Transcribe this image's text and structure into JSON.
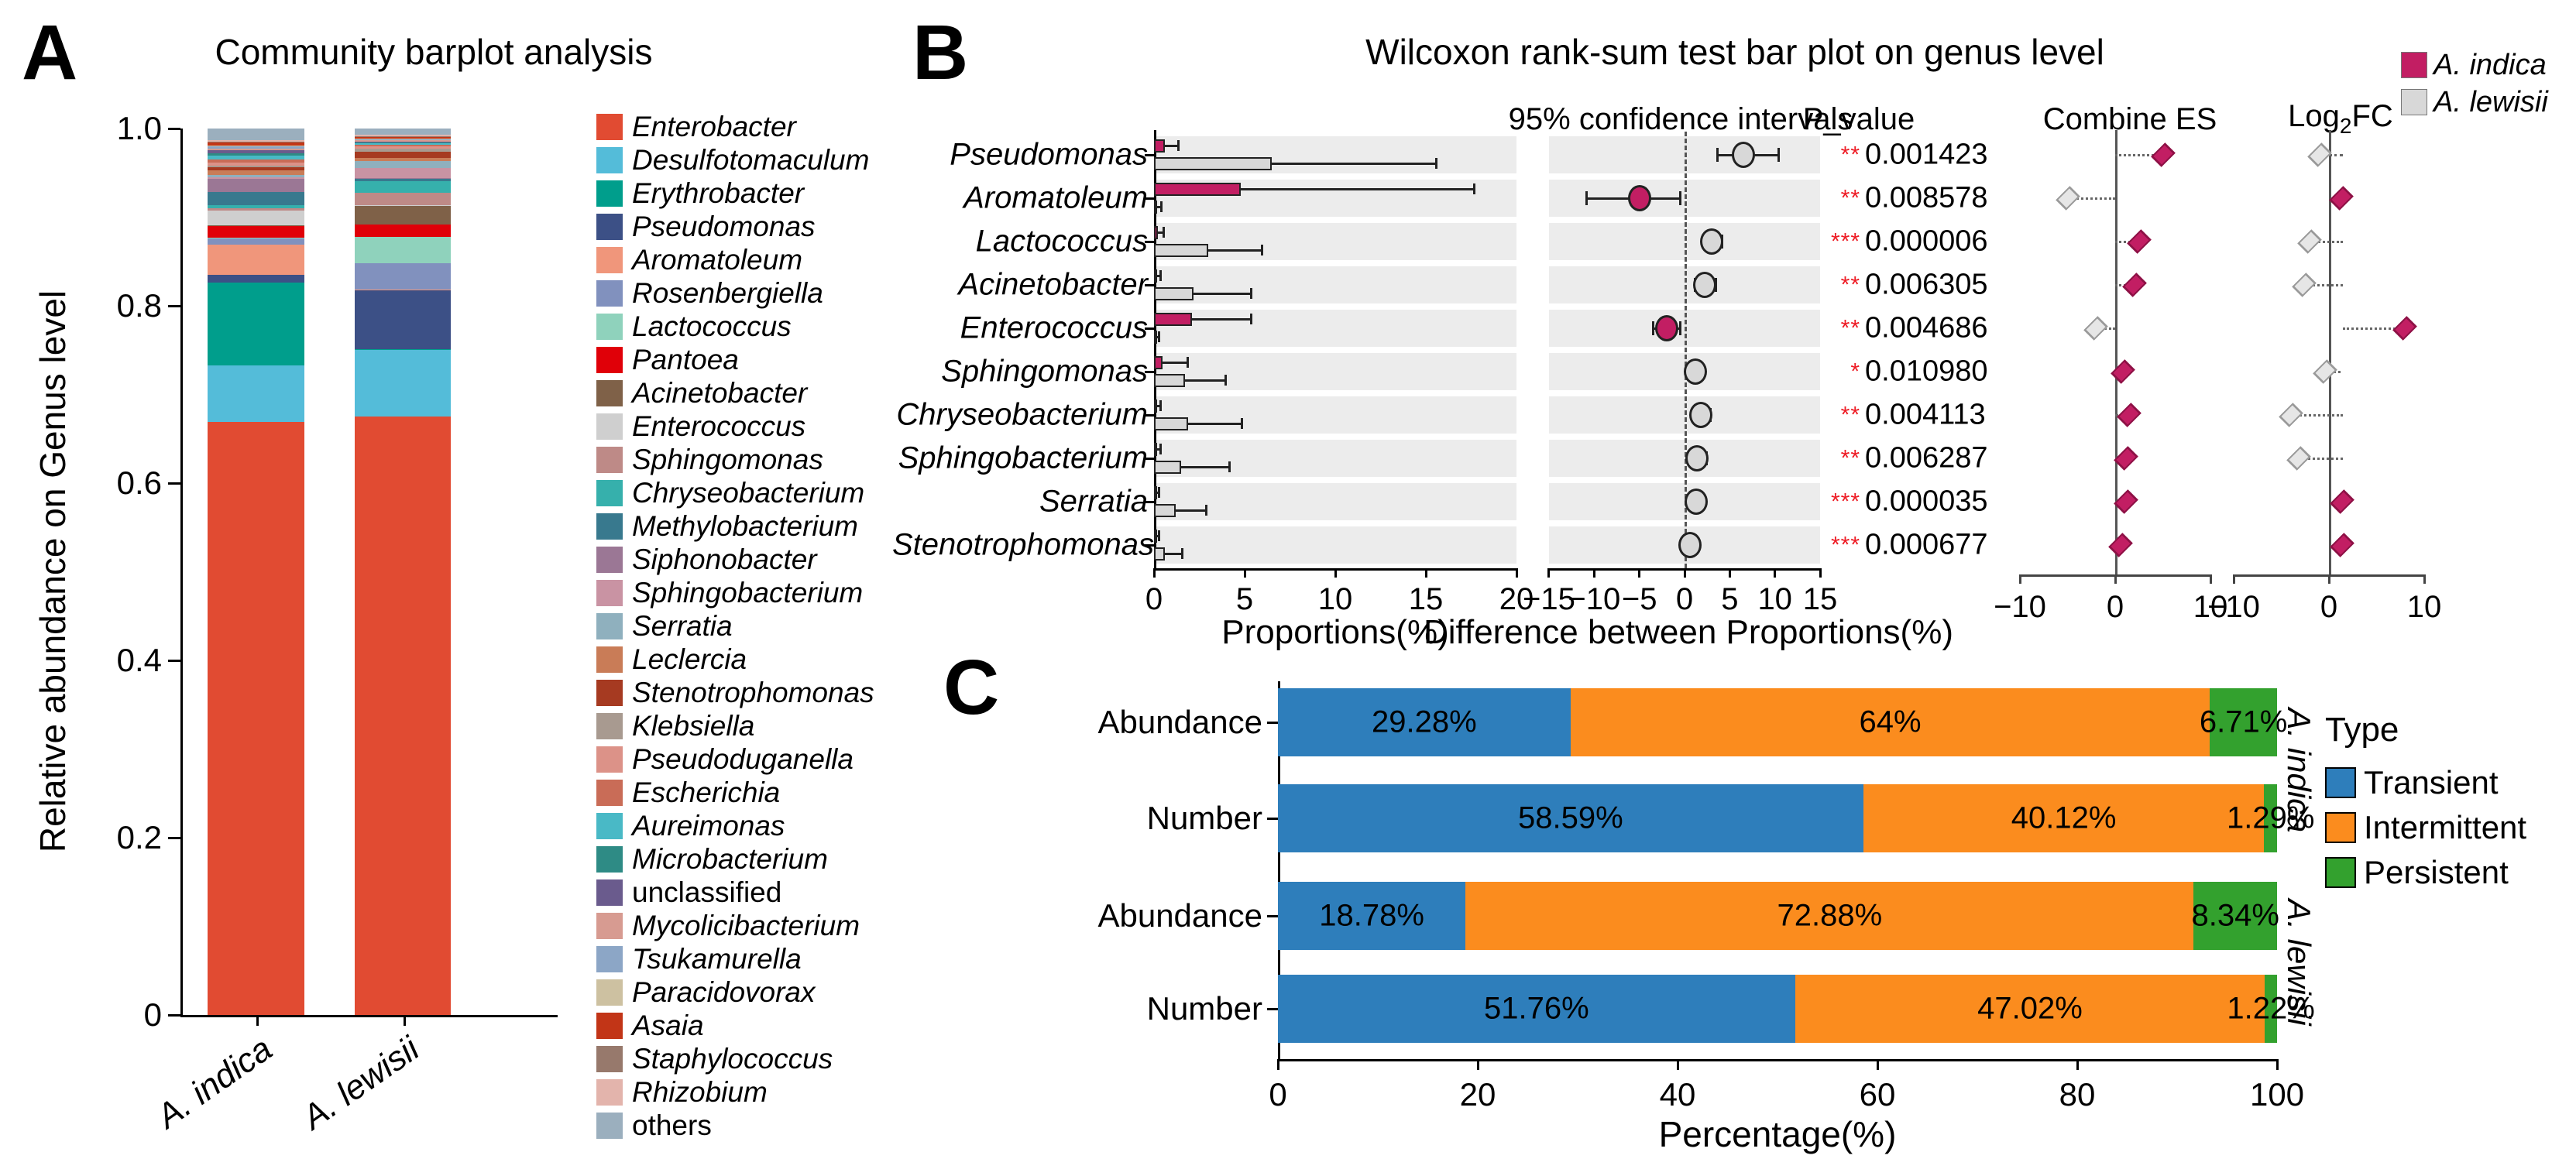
{
  "panels": {
    "a_label": "A",
    "b_label": "B",
    "c_label": "C"
  },
  "colors": {
    "indica": "#C21E63",
    "lewisii": "#D8D8D8",
    "stripe": "#ECECEC",
    "star": "#EE1C25"
  },
  "chart_data": [
    {
      "id": "A",
      "type": "bar",
      "stacked": true,
      "title": "Community barplot analysis",
      "ylabel": "Relative abundance on Genus level",
      "ylim": [
        0,
        1.0
      ],
      "yticks": [
        "1.0",
        "0.8",
        "0.6",
        "0.4",
        "0.2",
        "0"
      ],
      "categories": [
        "A. indica",
        "A. lewisii"
      ],
      "series": [
        {
          "name": "Enterobacter",
          "color": "#E14B32",
          "values": [
            0.672,
            0.678
          ]
        },
        {
          "name": "Desulfotomaculum",
          "color": "#54BCD9",
          "values": [
            0.064,
            0.075
          ]
        },
        {
          "name": "Erythrobacter",
          "color": "#009E8C",
          "values": [
            0.094,
            0.001
          ]
        },
        {
          "name": "Pseudomonas",
          "color": "#3C5086",
          "values": [
            0.009,
            0.067
          ]
        },
        {
          "name": "Aromatoleum",
          "color": "#F0967B",
          "values": [
            0.034,
            0.001
          ]
        },
        {
          "name": "Rosenbergiella",
          "color": "#8191BE",
          "values": [
            0.007,
            0.029
          ]
        },
        {
          "name": "Lactococcus",
          "color": "#8FD2BC",
          "values": [
            0.001,
            0.03
          ]
        },
        {
          "name": "Pantoea",
          "color": "#E00008",
          "values": [
            0.013,
            0.014
          ]
        },
        {
          "name": "Acinetobacter",
          "color": "#7F6148",
          "values": [
            0.001,
            0.021
          ]
        },
        {
          "name": "Enterococcus",
          "color": "#CFCFCF",
          "values": [
            0.017,
            0.001
          ]
        },
        {
          "name": "Sphingomonas",
          "color": "#BE8A87",
          "values": [
            0.003,
            0.014
          ]
        },
        {
          "name": "Chryseobacterium",
          "color": "#36B0AC",
          "values": [
            0.003,
            0.013
          ]
        },
        {
          "name": "Methylobacterium",
          "color": "#38798E",
          "values": [
            0.015,
            0.003
          ]
        },
        {
          "name": "Siphonobacter",
          "color": "#9B7795",
          "values": [
            0.015,
            0.001
          ]
        },
        {
          "name": "Sphingobacterium",
          "color": "#C993A3",
          "values": [
            0.002,
            0.011
          ]
        },
        {
          "name": "Serratia",
          "color": "#8FB0BE",
          "values": [
            0.002,
            0.008
          ]
        },
        {
          "name": "Leclercia",
          "color": "#C97C57",
          "values": [
            0.006,
            0.004
          ]
        },
        {
          "name": "Stenotrophomonas",
          "color": "#A63A21",
          "values": [
            0.003,
            0.007
          ]
        },
        {
          "name": "Klebsiella",
          "color": "#A89A90",
          "values": [
            0.002,
            0.003
          ]
        },
        {
          "name": "Pseudoduganella",
          "color": "#DC9288",
          "values": [
            0.003,
            0.003
          ]
        },
        {
          "name": "Escherichia",
          "color": "#C96C57",
          "values": [
            0.004,
            0.002
          ]
        },
        {
          "name": "Aureimonas",
          "color": "#49B9C6",
          "values": [
            0.004,
            0.001
          ]
        },
        {
          "name": "Microbacterium",
          "color": "#2E8B85",
          "values": [
            0.003,
            0.001
          ]
        },
        {
          "name": "unclassified",
          "color": "#6A5B8D",
          "values": [
            0.003,
            0.001
          ],
          "italic": false
        },
        {
          "name": "Mycolicibacterium",
          "color": "#D79B91",
          "values": [
            0.002,
            0.002
          ]
        },
        {
          "name": "Tsukamurella",
          "color": "#8CA6C6",
          "values": [
            0.003,
            0.001
          ]
        },
        {
          "name": "Paracidovorax",
          "color": "#CDC1A1",
          "values": [
            0.001,
            0.001
          ]
        },
        {
          "name": "Asaia",
          "color": "#C23517",
          "values": [
            0.003,
            0.001
          ]
        },
        {
          "name": "Staphylococcus",
          "color": "#97796C",
          "values": [
            0.001,
            0.001
          ]
        },
        {
          "name": "Rhizobium",
          "color": "#E3B4AC",
          "values": [
            0.002,
            0.002
          ]
        },
        {
          "name": "others",
          "color": "#9BAFBE",
          "values": [
            0.013,
            0.007
          ],
          "italic": false
        }
      ]
    },
    {
      "id": "B",
      "type": "bar-forest",
      "title": "Wilcoxon rank-sum test bar plot on genus level",
      "subtitle": "95% confidence intervals",
      "pvalue_header": "P_value",
      "es_header": "Combine ES",
      "fc_header": {
        "pre": "Log",
        "sub": "2",
        "post": "FC"
      },
      "xlabel_proportions": "Proportions(%)",
      "xlabel_difference": "Difference between Proportions(%)",
      "xlim_proportions": [
        0,
        20
      ],
      "xticks_proportions": [
        0,
        5,
        10,
        15,
        20
      ],
      "xlim_difference": [
        -15,
        15
      ],
      "xticks_difference": [
        -15,
        -10,
        -5,
        0,
        5,
        10,
        15
      ],
      "xlim_es": [
        -10,
        10
      ],
      "xticks_es": [
        -10,
        0,
        10
      ],
      "xlim_fc": [
        -10,
        10
      ],
      "xticks_fc": [
        -10,
        0,
        10
      ],
      "legend": [
        {
          "label": "A. indica",
          "color": "#C21E63"
        },
        {
          "label": "A. lewisii",
          "color": "#D8D8D8"
        }
      ],
      "rows": [
        {
          "genus": "Pseudomonas",
          "proportions": {
            "indica": 0.6,
            "indica_err": 1.3,
            "lewisii": 6.5,
            "lewisii_err": 15.5
          },
          "difference": {
            "center": 6.5,
            "lo": 3.5,
            "hi": 10.5,
            "group": "lewisii"
          },
          "stars": "**",
          "p_value": "0.001423",
          "combine_es": {
            "value": 5.0,
            "group": "indica",
            "line": [
              0,
              5
            ]
          },
          "log2fc": {
            "value": -1.0,
            "group": "lewisii",
            "line": [
              -1,
              1.5
            ]
          }
        },
        {
          "genus": "Aromatoleum",
          "proportions": {
            "indica": 4.8,
            "indica_err": 17.6,
            "lewisii": 0.15,
            "lewisii_err": 0.35
          },
          "difference": {
            "center": -5.0,
            "lo": -11.0,
            "hi": -0.3,
            "group": "indica"
          },
          "stars": "**",
          "p_value": "0.008578",
          "combine_es": {
            "value": -5.0,
            "group": "lewisii",
            "line": [
              -5,
              0
            ]
          },
          "log2fc": {
            "value": 1.3,
            "group": "indica",
            "line": null
          }
        },
        {
          "genus": "Lactococcus",
          "proportions": {
            "indica": 0.2,
            "indica_err": 0.45,
            "lewisii": 3.0,
            "lewisii_err": 5.9
          },
          "difference": {
            "center": 3.0,
            "lo": 1.9,
            "hi": 4.3,
            "group": "lewisii"
          },
          "stars": "***",
          "p_value": "0.000006",
          "combine_es": {
            "value": 2.5,
            "group": "indica",
            "line": [
              0,
              2.5
            ]
          },
          "log2fc": {
            "value": -2.0,
            "group": "lewisii",
            "line": [
              -2,
              1.5
            ]
          }
        },
        {
          "genus": "Acinetobacter",
          "proportions": {
            "indica": 0.15,
            "indica_err": 0.3,
            "lewisii": 2.2,
            "lewisii_err": 5.3
          },
          "difference": {
            "center": 2.2,
            "lo": 1.0,
            "hi": 3.6,
            "group": "lewisii"
          },
          "stars": "**",
          "p_value": "0.006305",
          "combine_es": {
            "value": 2.0,
            "group": "indica",
            "line": [
              0,
              2
            ]
          },
          "log2fc": {
            "value": -2.6,
            "group": "lewisii",
            "line": [
              -2.6,
              1.5
            ]
          }
        },
        {
          "genus": "Enterococcus",
          "proportions": {
            "indica": 2.1,
            "indica_err": 5.3,
            "lewisii": 0.1,
            "lewisii_err": 0.2
          },
          "difference": {
            "center": -2.0,
            "lo": -3.6,
            "hi": -0.3,
            "group": "indica"
          },
          "stars": "**",
          "p_value": "0.004686",
          "combine_es": {
            "value": -2.0,
            "group": "lewisii",
            "line": [
              -2,
              0
            ]
          },
          "log2fc": {
            "value": 8.0,
            "group": "indica",
            "line": [
              1.5,
              8
            ]
          }
        },
        {
          "genus": "Sphingomonas",
          "proportions": {
            "indica": 0.45,
            "indica_err": 1.8,
            "lewisii": 1.7,
            "lewisii_err": 3.9
          },
          "difference": {
            "center": 1.2,
            "lo": 0.3,
            "hi": 2.2,
            "group": "lewisii"
          },
          "stars": "*",
          "p_value": "0.010980",
          "combine_es": {
            "value": 0.8,
            "group": "indica",
            "line": [
              0,
              0.8
            ]
          },
          "log2fc": {
            "value": -0.4,
            "group": "lewisii",
            "line": [
              -0.4,
              1.2
            ]
          }
        },
        {
          "genus": "Chryseobacterium",
          "proportions": {
            "indica": 0.15,
            "indica_err": 0.3,
            "lewisii": 1.9,
            "lewisii_err": 4.8
          },
          "difference": {
            "center": 1.8,
            "lo": 0.8,
            "hi": 3.0,
            "group": "lewisii"
          },
          "stars": "**",
          "p_value": "0.004113",
          "combine_es": {
            "value": 1.5,
            "group": "indica",
            "line": [
              0,
              1.5
            ]
          },
          "log2fc": {
            "value": -4.0,
            "group": "lewisii",
            "line": [
              -4,
              1.5
            ]
          }
        },
        {
          "genus": "Sphingobacterium",
          "proportions": {
            "indica": 0.15,
            "indica_err": 0.3,
            "lewisii": 1.5,
            "lewisii_err": 4.1
          },
          "difference": {
            "center": 1.4,
            "lo": 0.5,
            "hi": 2.6,
            "group": "lewisii"
          },
          "stars": "**",
          "p_value": "0.006287",
          "combine_es": {
            "value": 1.1,
            "group": "indica",
            "line": [
              0,
              1.1
            ]
          },
          "log2fc": {
            "value": -3.2,
            "group": "lewisii",
            "line": [
              -3.2,
              1.5
            ]
          }
        },
        {
          "genus": "Serratia",
          "proportions": {
            "indica": 0.1,
            "indica_err": 0.2,
            "lewisii": 1.2,
            "lewisii_err": 2.8
          },
          "difference": {
            "center": 1.3,
            "lo": 0.4,
            "hi": 2.3,
            "group": "lewisii"
          },
          "stars": "***",
          "p_value": "0.000035",
          "combine_es": {
            "value": 1.1,
            "group": "indica",
            "line": [
              0,
              1.1
            ]
          },
          "log2fc": {
            "value": 1.4,
            "group": "indica",
            "line": null
          }
        },
        {
          "genus": "Stenotrophomonas",
          "proportions": {
            "indica": 0.1,
            "indica_err": 0.2,
            "lewisii": 0.6,
            "lewisii_err": 1.5
          },
          "difference": {
            "center": 0.6,
            "lo": 0.2,
            "hi": 1.1,
            "group": "lewisii"
          },
          "stars": "***",
          "p_value": "0.000677",
          "combine_es": {
            "value": 0.6,
            "group": "indica",
            "line": [
              0,
              0.6
            ]
          },
          "log2fc": {
            "value": 1.4,
            "group": "indica",
            "line": null
          }
        }
      ]
    },
    {
      "id": "C",
      "type": "bar-stacked-horizontal",
      "xlabel": "Percentage(%)",
      "xlim": [
        0,
        100
      ],
      "xticks": [
        0,
        20,
        40,
        60,
        80,
        100
      ],
      "categories": [
        "Abundance",
        "Number",
        "Abundance",
        "Number"
      ],
      "group_labels": [
        "A. indica",
        "A. lewisii"
      ],
      "legend_title": "Type",
      "series": [
        {
          "name": "Transient",
          "color": "#2E7EBB",
          "values": [
            29.28,
            58.59,
            18.78,
            51.76
          ],
          "labels": [
            "29.28%",
            "58.59%",
            "18.78%",
            "51.76%"
          ]
        },
        {
          "name": "Intermittent",
          "color": "#FB8C1E",
          "values": [
            64,
            40.12,
            72.88,
            47.02
          ],
          "labels": [
            "64%",
            "40.12%",
            "72.88%",
            "47.02%"
          ]
        },
        {
          "name": "Persistent",
          "color": "#33A12E",
          "values": [
            6.71,
            1.29,
            8.34,
            1.22
          ],
          "labels": [
            "6.71%",
            "1.29%",
            "8.34%",
            "1.22%"
          ]
        }
      ]
    }
  ]
}
